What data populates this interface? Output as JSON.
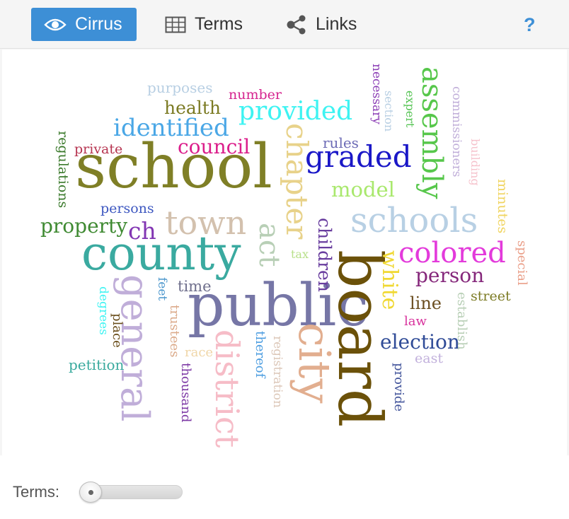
{
  "toolbar": {
    "tabs": [
      {
        "label": "Cirrus",
        "icon": "eye-icon",
        "active": true
      },
      {
        "label": "Terms",
        "icon": "table-grid-icon",
        "active": false
      },
      {
        "label": "Links",
        "icon": "share-nodes-icon",
        "active": false
      }
    ],
    "help_label": "?"
  },
  "footer": {
    "terms_label": "Terms:",
    "slider_value": 0.05
  },
  "colors": {
    "accent": "#3d8fd6"
  },
  "words": [
    {
      "text": "school",
      "color": "#7f7f26"
    },
    {
      "text": "public",
      "color": "#7676a6"
    },
    {
      "text": "board",
      "color": "#6b5109"
    },
    {
      "text": "county",
      "color": "#3aaaa0"
    },
    {
      "text": "city",
      "color": "#e2ae8f"
    },
    {
      "text": "general",
      "color": "#c0aed9"
    },
    {
      "text": "schools",
      "color": "#b8d0e4"
    },
    {
      "text": "district",
      "color": "#f6bcc7"
    },
    {
      "text": "town",
      "color": "#d3c1ae"
    },
    {
      "text": "chapter",
      "color": "#e8d28a"
    },
    {
      "text": "assembly",
      "color": "#57c74b"
    },
    {
      "text": "graded",
      "color": "#1a17c7"
    },
    {
      "text": "colored",
      "color": "#e33adb"
    },
    {
      "text": "provided",
      "color": "#3ef3f2"
    },
    {
      "text": "identified",
      "color": "#4aa7e6"
    },
    {
      "text": "act",
      "color": "#b8cfb6"
    },
    {
      "text": "ch",
      "color": "#8236b3"
    },
    {
      "text": "council",
      "color": "#db1e8b"
    },
    {
      "text": "white",
      "color": "#f0d832"
    },
    {
      "text": "property",
      "color": "#3f8a32"
    },
    {
      "text": "election",
      "color": "#2f4b97"
    },
    {
      "text": "person",
      "color": "#85287b"
    },
    {
      "text": "model",
      "color": "#a9e86d"
    },
    {
      "text": "children",
      "color": "#693e9f"
    },
    {
      "text": "health",
      "color": "#7b7a22"
    },
    {
      "text": "line",
      "color": "#6b4e20"
    },
    {
      "text": "time",
      "color": "#6f6f8c"
    },
    {
      "text": "private",
      "color": "#b63450"
    },
    {
      "text": "persons",
      "color": "#3d57c0"
    },
    {
      "text": "number",
      "color": "#d5258f"
    },
    {
      "text": "purposes",
      "color": "#b8cfe3"
    },
    {
      "text": "rules",
      "color": "#6d6cb6"
    },
    {
      "text": "regulations",
      "color": "#3b7a2c"
    },
    {
      "text": "street",
      "color": "#7c7b24"
    },
    {
      "text": "law",
      "color": "#d8319c"
    },
    {
      "text": "petition",
      "color": "#3aaa9e"
    },
    {
      "text": "minutes",
      "color": "#f0d45f"
    },
    {
      "text": "special",
      "color": "#ea9f89"
    },
    {
      "text": "establish",
      "color": "#b8cfb6"
    },
    {
      "text": "east",
      "color": "#c2b1dc"
    },
    {
      "text": "provide",
      "color": "#44569c"
    },
    {
      "text": "registration",
      "color": "#dcc7b8"
    },
    {
      "text": "thereof",
      "color": "#4c9de0"
    },
    {
      "text": "thousand",
      "color": "#7d3aa5"
    },
    {
      "text": "trustees",
      "color": "#dbaa8a"
    },
    {
      "text": "race",
      "color": "#f0d6a8"
    },
    {
      "text": "place",
      "color": "#6a4e1b"
    },
    {
      "text": "feet",
      "color": "#4a96cc"
    },
    {
      "text": "degrees",
      "color": "#3ef3f2"
    },
    {
      "text": "tax",
      "color": "#b8e08a"
    },
    {
      "text": "necessary",
      "color": "#8b3db5"
    },
    {
      "text": "section",
      "color": "#b8cfe3"
    },
    {
      "text": "expert",
      "color": "#56c454"
    },
    {
      "text": "commissioners",
      "color": "#c0aed9"
    },
    {
      "text": "building",
      "color": "#f6c2cc"
    }
  ]
}
